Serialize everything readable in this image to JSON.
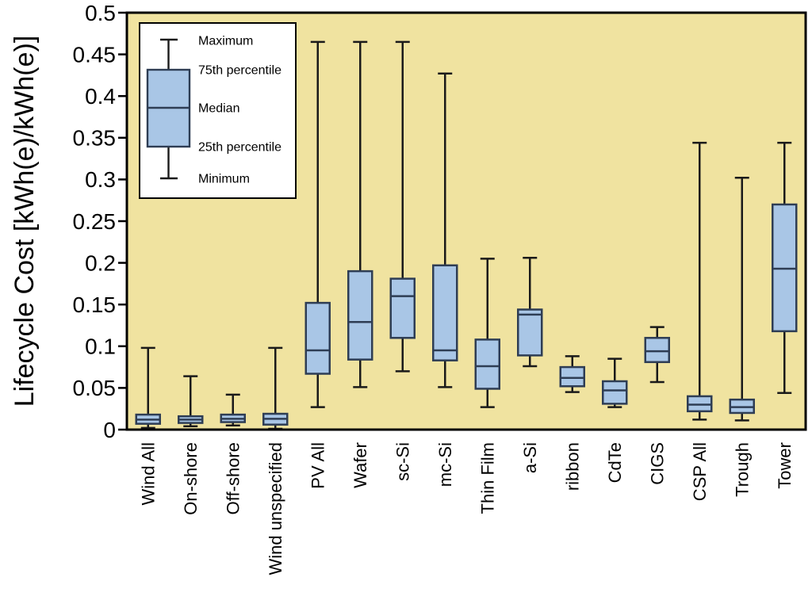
{
  "chart_data": {
    "type": "box",
    "title": "",
    "xlabel": "",
    "ylabel": "Lifecycle Cost [kWh(e)/kWh(e)]",
    "ylim": [
      0,
      0.5
    ],
    "ytick_step": 0.05,
    "ytick_labels": [
      "0",
      "0.05",
      "0.1",
      "0.15",
      "0.2",
      "0.25",
      "0.3",
      "0.35",
      "0.4",
      "0.45",
      "0.5"
    ],
    "grid": false,
    "legend_position": "top-left",
    "legend_labels": [
      "Maximum",
      "75th percentile",
      "Median",
      "25th percentile",
      "Minimum"
    ],
    "colors": {
      "plot_background": "#F0E3A0",
      "box_fill": "#A9C6E6",
      "box_stroke": "#2E3D54",
      "whisker": "#1A1A1A",
      "frame": "#000000",
      "text": "#000000",
      "legend_background": "#FFFFFF"
    },
    "categories": [
      "Wind All",
      "On-shore",
      "Off-shore",
      "Wind unspecified",
      "PV All",
      "Wafer",
      "sc-Si",
      "mc-Si",
      "Thin Film",
      "a-Si",
      "ribbon",
      "CdTe",
      "CIGS",
      "CSP All",
      "Trough",
      "Tower"
    ],
    "series": [
      {
        "name": "Wind All",
        "min": 0.002,
        "q1": 0.007,
        "median": 0.012,
        "q3": 0.018,
        "max": 0.098
      },
      {
        "name": "On-shore",
        "min": 0.004,
        "q1": 0.008,
        "median": 0.012,
        "q3": 0.016,
        "max": 0.064
      },
      {
        "name": "Off-shore",
        "min": 0.005,
        "q1": 0.009,
        "median": 0.013,
        "q3": 0.018,
        "max": 0.042
      },
      {
        "name": "Wind unspecified",
        "min": 0.001,
        "q1": 0.006,
        "median": 0.013,
        "q3": 0.019,
        "max": 0.098
      },
      {
        "name": "PV All",
        "min": 0.027,
        "q1": 0.067,
        "median": 0.095,
        "q3": 0.152,
        "max": 0.465
      },
      {
        "name": "Wafer",
        "min": 0.051,
        "q1": 0.084,
        "median": 0.129,
        "q3": 0.19,
        "max": 0.465
      },
      {
        "name": "sc-Si",
        "min": 0.07,
        "q1": 0.11,
        "median": 0.16,
        "q3": 0.181,
        "max": 0.465
      },
      {
        "name": "mc-Si",
        "min": 0.051,
        "q1": 0.083,
        "median": 0.095,
        "q3": 0.197,
        "max": 0.427
      },
      {
        "name": "Thin Film",
        "min": 0.027,
        "q1": 0.049,
        "median": 0.076,
        "q3": 0.108,
        "max": 0.205
      },
      {
        "name": "a-Si",
        "min": 0.076,
        "q1": 0.089,
        "median": 0.138,
        "q3": 0.144,
        "max": 0.206
      },
      {
        "name": "ribbon",
        "min": 0.045,
        "q1": 0.052,
        "median": 0.062,
        "q3": 0.075,
        "max": 0.088
      },
      {
        "name": "CdTe",
        "min": 0.027,
        "q1": 0.031,
        "median": 0.047,
        "q3": 0.058,
        "max": 0.085
      },
      {
        "name": "CIGS",
        "min": 0.057,
        "q1": 0.081,
        "median": 0.094,
        "q3": 0.11,
        "max": 0.123
      },
      {
        "name": "CSP All",
        "min": 0.012,
        "q1": 0.022,
        "median": 0.03,
        "q3": 0.04,
        "max": 0.344
      },
      {
        "name": "Trough",
        "min": 0.011,
        "q1": 0.02,
        "median": 0.027,
        "q3": 0.036,
        "max": 0.302
      },
      {
        "name": "Tower",
        "min": 0.044,
        "q1": 0.118,
        "median": 0.193,
        "q3": 0.27,
        "max": 0.344
      }
    ]
  }
}
